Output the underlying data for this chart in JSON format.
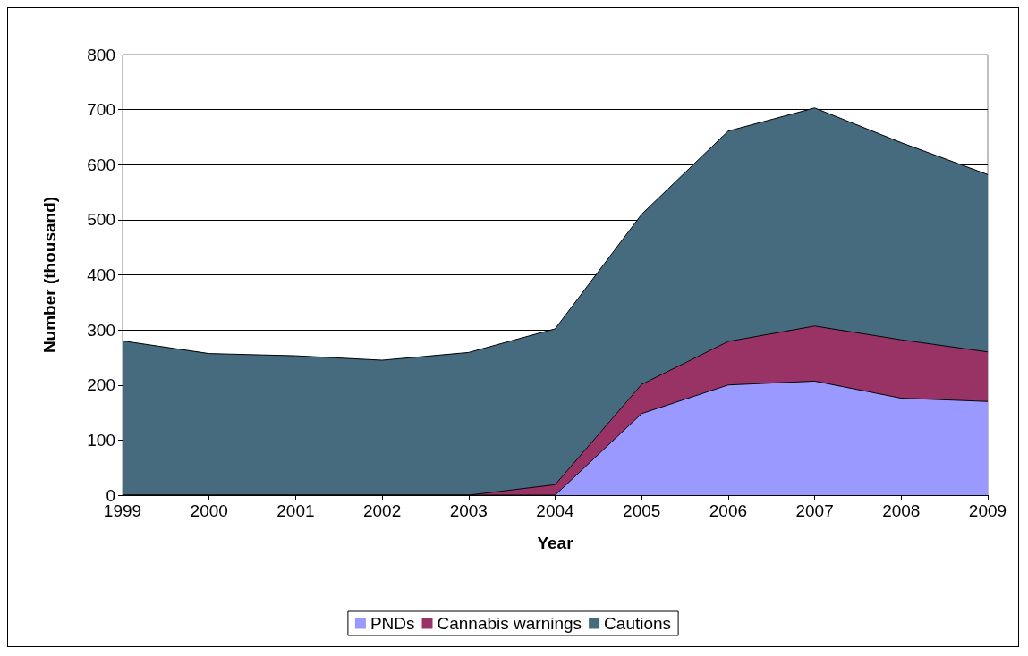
{
  "chart_data": {
    "type": "area",
    "stacked": true,
    "xlabel": "Year",
    "ylabel": "Number (thousand)",
    "categories": [
      "1999",
      "2000",
      "2001",
      "2002",
      "2003",
      "2004",
      "2005",
      "2006",
      "2007",
      "2008",
      "2009"
    ],
    "series": [
      {
        "name": "PNDs",
        "color": "#9999ff",
        "values": [
          0,
          0,
          0,
          0,
          0,
          0,
          148,
          200,
          207,
          176,
          170
        ]
      },
      {
        "name": "Cannabis warnings",
        "color": "#993366",
        "values": [
          0,
          0,
          0,
          0,
          0,
          19,
          53,
          79,
          100,
          106,
          90
        ]
      },
      {
        "name": "Cautions",
        "color": "#466b7e",
        "values": [
          280,
          257,
          253,
          245,
          259,
          283,
          309,
          382,
          396,
          358,
          322
        ]
      }
    ],
    "ylim": [
      0,
      800
    ],
    "yticks": [
      0,
      100,
      200,
      300,
      400,
      500,
      600,
      700,
      800
    ],
    "grid": "y",
    "legend": "bottom"
  }
}
